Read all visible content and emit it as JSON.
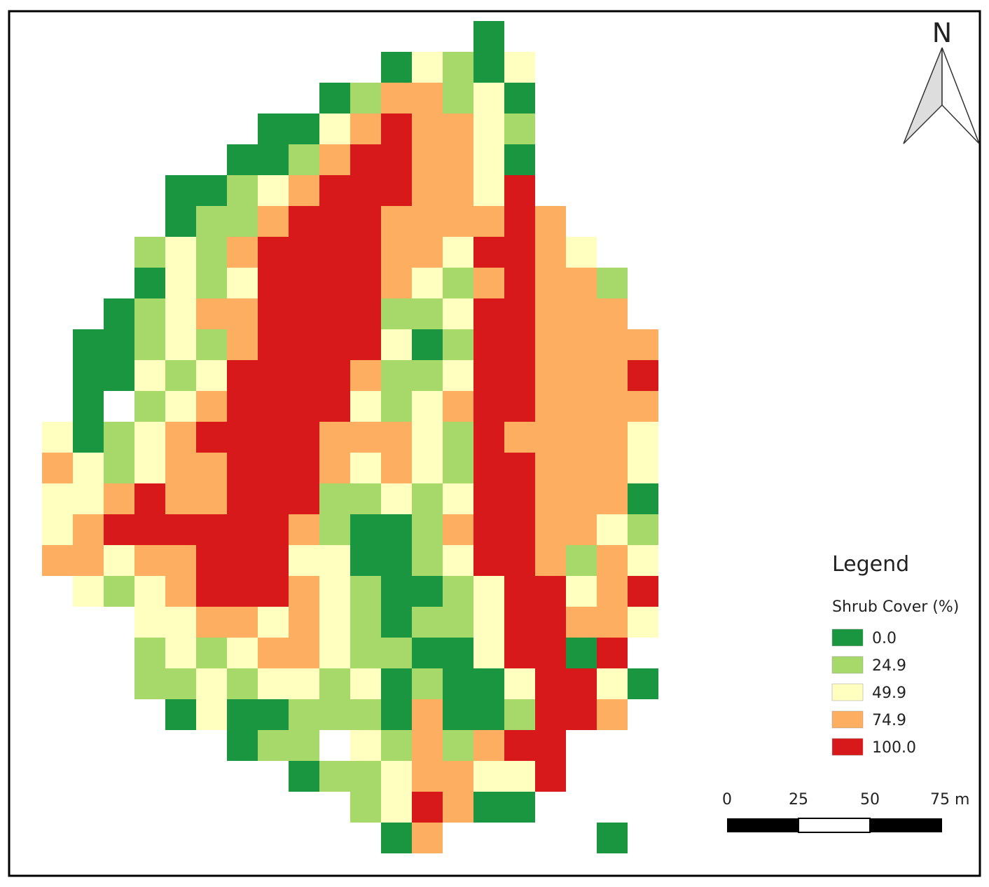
{
  "map": {
    "north": "N",
    "legend": {
      "title": "Legend",
      "subtitle": "Shrub Cover (%)",
      "items": [
        {
          "label": "0.0",
          "color": "#1a9641"
        },
        {
          "label": "24.9",
          "color": "#a6d96a"
        },
        {
          "label": "49.9",
          "color": "#ffffc0"
        },
        {
          "label": "74.9",
          "color": "#fdae61"
        },
        {
          "label": "100.0",
          "color": "#d7191c"
        }
      ]
    },
    "scale_bar": {
      "labels": [
        "0",
        "25",
        "50",
        "75 m"
      ]
    },
    "raster": {
      "rows": [
        "..............0......",
        "...........02102.....",
        ".........0133120.....",
        ".......002343321.....",
        "......0013443320.....",
        "....001234443324.....",
        "....0113444333343....",
        "...121344443324432...",
        "...0212444432134331..",
        "..01233444411244333..",
        ".0012134444201443333.",
        ".0021244443112443334.",
        ".0.12344442123443333.",
        "20123444433321433332.",
        "32123344432321443332.",
        "22343344411212443330.",
        "23444444310013443321.",
        "33233444220012443132.",
        ".2123444321001244234.",
        "...22332321011244332.",
        "...1212332110024404..",
        "...11212212010024420.",
        "....020011103001443..",
        "......011.2131344....",
        "........011233224....",
        "..........124300.....",
        "...........03.....0.."
      ]
    }
  }
}
